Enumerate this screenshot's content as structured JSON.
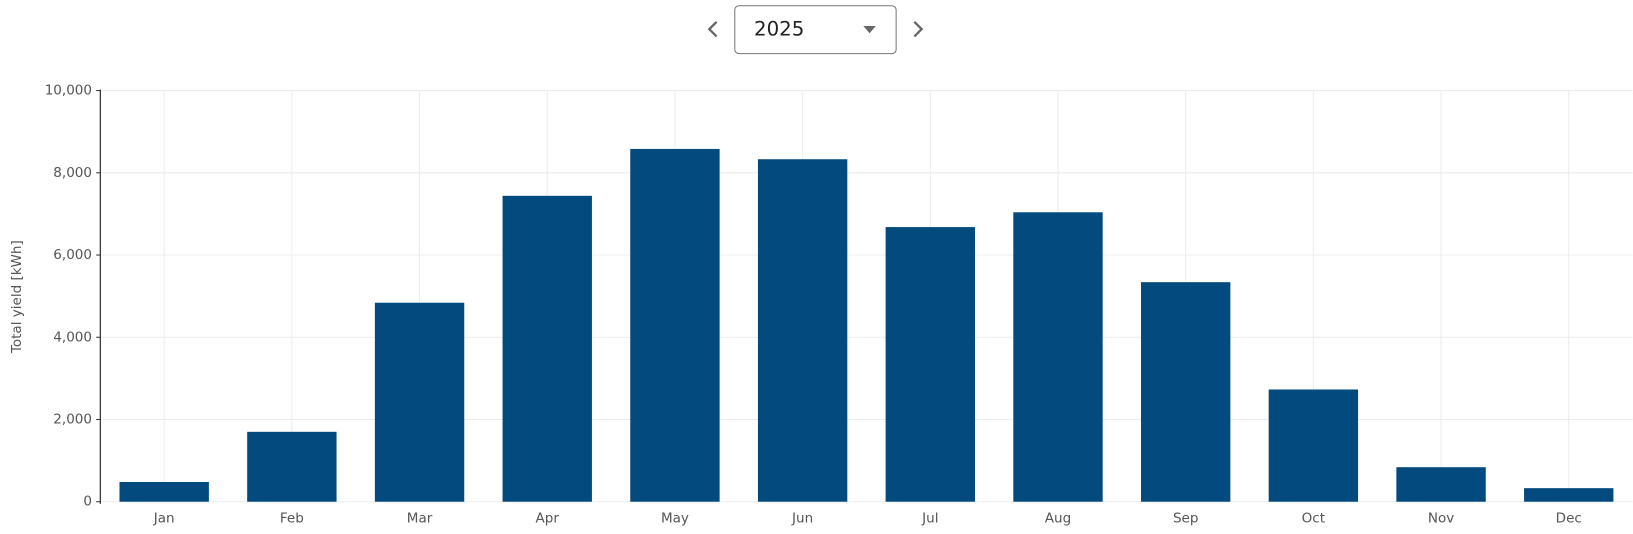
{
  "year_selector": {
    "value": "2025"
  },
  "chart_data": {
    "type": "bar",
    "y_label": "Total yield [kWh]",
    "categories": [
      "Jan",
      "Feb",
      "Mar",
      "Apr",
      "May",
      "Jun",
      "Jul",
      "Aug",
      "Sep",
      "Oct",
      "Nov",
      "Dec"
    ],
    "values": [
      480,
      1700,
      4840,
      7440,
      8580,
      8330,
      6680,
      7040,
      5340,
      2730,
      840,
      330
    ],
    "color": "#034a7e",
    "ylim": [
      0,
      10000
    ],
    "yticks": [
      0,
      {
        "value": 2000,
        "label": "2,000"
      },
      {
        "value": 4000,
        "label": "4,000"
      },
      {
        "value": 6000,
        "label": "6,000"
      },
      {
        "value": 8000,
        "label": "8,000"
      },
      {
        "value": 10000,
        "label": "10,000"
      }
    ],
    "grid": true
  }
}
